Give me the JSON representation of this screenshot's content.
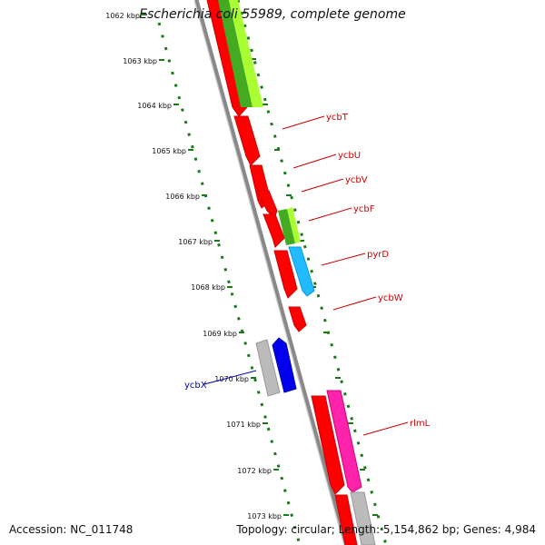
{
  "header": {
    "title": "Escherichia coli 55989, complete genome"
  },
  "footer": {
    "accession": "Accession: NC_011748",
    "topology": "Topology: circular; Length: 5,154,862 bp; Genes: 4,984"
  },
  "colors": {
    "backbone": "#777777",
    "tick_dots": "#1a7a1a",
    "red_gene": "#ff0000",
    "green_gene": "#44aa22",
    "yellowgreen_gene": "#aaff33",
    "cyan_gene": "#22bbff",
    "blue_gene": "#0000ee",
    "magenta_gene": "#ff22aa",
    "gray_gene": "#bbbbbb",
    "label_red": "#cc0000",
    "label_blue": "#0000aa"
  },
  "ticks": [
    {
      "label": "1062 kbp"
    },
    {
      "label": "1063 kbp"
    },
    {
      "label": "1064 kbp"
    },
    {
      "label": "1065 kbp"
    },
    {
      "label": "1066 kbp"
    },
    {
      "label": "1067 kbp"
    },
    {
      "label": "1068 kbp"
    },
    {
      "label": "1069 kbp"
    },
    {
      "label": "1070 kbp"
    },
    {
      "label": "1071 kbp"
    },
    {
      "label": "1072 kbp"
    },
    {
      "label": "1073 kbp"
    }
  ],
  "gene_labels": [
    {
      "name": "ycbT"
    },
    {
      "name": "ycbU"
    },
    {
      "name": "ycbV"
    },
    {
      "name": "ycbF"
    },
    {
      "name": "pyrD"
    },
    {
      "name": "ycbW"
    },
    {
      "name": "ycbX"
    },
    {
      "name": "rlmL"
    }
  ]
}
